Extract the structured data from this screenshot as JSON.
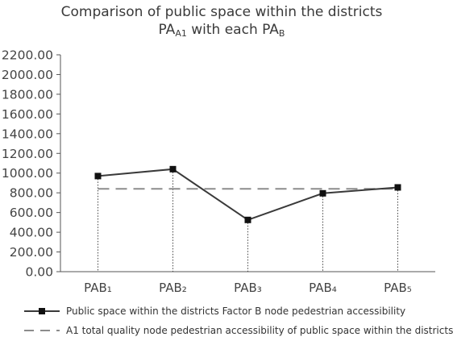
{
  "title": {
    "line1": "Comparison of public space within the districts",
    "line2_main": "PA",
    "line2_sub": "A1",
    "line2_mid": " with each PA",
    "line2_sub2": "B"
  },
  "chart_data": {
    "type": "line",
    "categories": [
      "PAB₁",
      "PAB₂",
      "PAB₃",
      "PAB₄",
      "PAB₅"
    ],
    "ylim": [
      0,
      2200
    ],
    "yticks": [
      "0.00",
      "200.00",
      "400.00",
      "600.00",
      "800.00",
      "1000.00",
      "1200.00",
      "1400.00",
      "1600.00",
      "1800.00",
      "2000.00",
      "2200.00"
    ],
    "series": [
      {
        "name": "Public space within the districts Factor B node pedestrian accessibility",
        "values": [
          970,
          1040,
          525,
          795,
          855
        ],
        "color": "#3a3a3a",
        "style": "solid",
        "marker": "square"
      },
      {
        "name": "A1 total quality node pedestrian accessibility of public space within the districts",
        "values": [
          840,
          840,
          840,
          840,
          840
        ],
        "color": "#8c8c8c",
        "style": "dashed",
        "marker": "none"
      }
    ],
    "drop_lines": "dotted",
    "grid": false,
    "legend_position": "bottom"
  }
}
